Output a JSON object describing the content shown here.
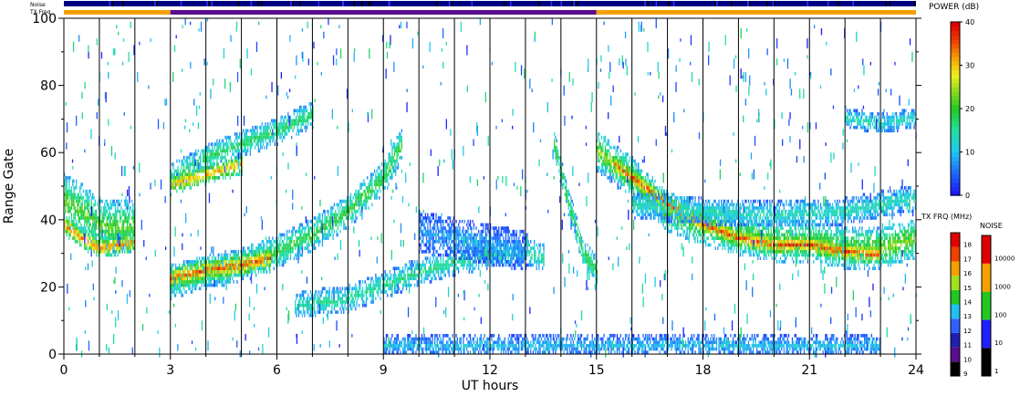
{
  "chart_data": {
    "type": "heatmap",
    "top_bars": {
      "noise_label": "Noise",
      "txfreq_label": "TX Freq",
      "txfreq_segments": [
        {
          "start": 0,
          "end": 3,
          "color": "#f5a000"
        },
        {
          "start": 3,
          "end": 15,
          "color": "#5a0d8c"
        },
        {
          "start": 15,
          "end": 24,
          "color": "#f5a000"
        }
      ]
    },
    "xlabel": "UT hours",
    "ylabel": "Range Gate",
    "xlim": [
      0,
      24
    ],
    "ylim": [
      0,
      100
    ],
    "x_ticks": [
      0,
      3,
      6,
      9,
      12,
      15,
      18,
      21,
      24
    ],
    "y_ticks": [
      0,
      20,
      40,
      60,
      80,
      100
    ],
    "hour_markers": [
      1,
      2,
      3,
      4,
      5,
      6,
      7,
      8,
      9,
      10,
      11,
      12,
      13,
      14,
      15,
      16,
      17,
      18,
      19,
      20,
      21,
      22,
      23
    ],
    "bands": [
      {
        "name": "pre-dawn band",
        "points": [
          [
            0,
            45
          ],
          [
            0.5,
            42
          ],
          [
            1,
            38
          ],
          [
            1.5,
            37
          ],
          [
            2,
            38
          ]
        ],
        "width": 8,
        "power": 22
      },
      {
        "name": "pre-dawn core",
        "points": [
          [
            0,
            38
          ],
          [
            0.5,
            34
          ],
          [
            1,
            31
          ],
          [
            1.5,
            32
          ],
          [
            2,
            33
          ]
        ],
        "width": 3,
        "power": 34
      },
      {
        "name": "morning lower",
        "points": [
          [
            3,
            21
          ],
          [
            4,
            24
          ],
          [
            5,
            26
          ],
          [
            6,
            30
          ],
          [
            7,
            35
          ],
          [
            8,
            42
          ],
          [
            9,
            52
          ],
          [
            9.5,
            62
          ]
        ],
        "width": 5,
        "power": 20
      },
      {
        "name": "morning lower core",
        "points": [
          [
            3,
            22
          ],
          [
            4,
            24.5
          ],
          [
            5,
            26
          ],
          [
            5.8,
            28
          ]
        ],
        "width": 3.5,
        "power": 36
      },
      {
        "name": "morning upper",
        "points": [
          [
            3,
            52
          ],
          [
            4,
            58
          ],
          [
            5,
            62
          ],
          [
            6,
            66
          ],
          [
            7,
            71
          ]
        ],
        "width": 4,
        "power": 18
      },
      {
        "name": "morning upper core",
        "points": [
          [
            3,
            50
          ],
          [
            4,
            53
          ],
          [
            5,
            56
          ]
        ],
        "width": 3,
        "power": 32
      },
      {
        "name": "mid-day lower",
        "points": [
          [
            6.5,
            14
          ],
          [
            8,
            16
          ],
          [
            9,
            20
          ],
          [
            10,
            24
          ],
          [
            11,
            27
          ],
          [
            12,
            29
          ],
          [
            13,
            30
          ],
          [
            13.5,
            28
          ]
        ],
        "width": 4,
        "power": 16
      },
      {
        "name": "mid-day scatter",
        "points": [
          [
            10,
            36
          ],
          [
            11,
            34
          ],
          [
            12,
            32
          ],
          [
            13,
            30
          ]
        ],
        "width": 6,
        "power": 8
      },
      {
        "name": "noon oblique",
        "points": [
          [
            13.8,
            62
          ],
          [
            14.2,
            45
          ],
          [
            14.6,
            30
          ],
          [
            15,
            24
          ]
        ],
        "width": 4,
        "power": 20
      },
      {
        "name": "afternoon band",
        "points": [
          [
            15,
            60
          ],
          [
            16,
            52
          ],
          [
            17,
            42
          ],
          [
            18,
            38
          ],
          [
            19,
            35
          ],
          [
            20,
            33
          ],
          [
            21,
            33
          ],
          [
            22,
            31
          ],
          [
            23,
            31
          ],
          [
            24,
            34
          ]
        ],
        "width": 6,
        "power": 24
      },
      {
        "name": "afternoon core",
        "points": [
          [
            15.5,
            56
          ],
          [
            16,
            52
          ],
          [
            17,
            44
          ],
          [
            18,
            38
          ],
          [
            19,
            34
          ],
          [
            20,
            32
          ],
          [
            21,
            32
          ],
          [
            22,
            30
          ],
          [
            23,
            29
          ]
        ],
        "width": 3,
        "power": 37
      },
      {
        "name": "evening upper",
        "points": [
          [
            16,
            44
          ],
          [
            18,
            42
          ],
          [
            20,
            41
          ],
          [
            22,
            42
          ],
          [
            24,
            46
          ]
        ],
        "width": 4,
        "power": 14
      },
      {
        "name": "late upper",
        "points": [
          [
            22,
            70
          ],
          [
            23,
            68
          ],
          [
            24,
            70
          ]
        ],
        "width": 3,
        "power": 14
      },
      {
        "name": "ground scatter",
        "points": [
          [
            9,
            2
          ],
          [
            11,
            2
          ],
          [
            13,
            2
          ],
          [
            15,
            2
          ],
          [
            17,
            2
          ],
          [
            19,
            2
          ],
          [
            21,
            2
          ],
          [
            23,
            2
          ]
        ],
        "width": 3,
        "power": 10
      }
    ],
    "colorbars": {
      "power": {
        "title": "POWER (dB)",
        "ticks": [
          0,
          10,
          20,
          30,
          40
        ]
      },
      "txfreq": {
        "title": "TX FRQ (MHz)",
        "ticks": [
          9,
          10,
          11,
          12,
          13,
          14,
          15,
          16,
          17,
          18
        ]
      },
      "noise": {
        "title": "NOISE",
        "ticks": [
          "1",
          "10",
          "100",
          "1000",
          "10000"
        ]
      }
    }
  }
}
